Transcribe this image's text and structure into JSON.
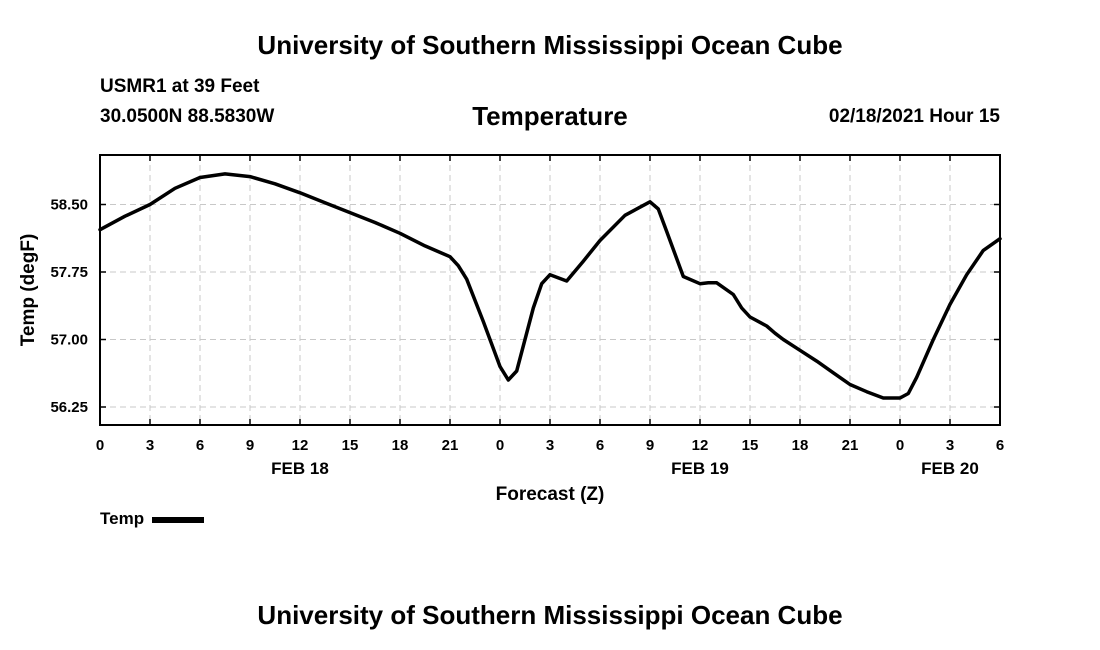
{
  "header": {
    "title": "University of Southern Mississippi Ocean Cube",
    "station": "USMR1 at 39 Feet",
    "coords": "30.0500N 88.5830W",
    "parameter": "Temperature",
    "datetime": "02/18/2021 Hour 15"
  },
  "footer": {
    "title": "University of Southern Mississippi Ocean Cube"
  },
  "legend": {
    "label": "Temp",
    "color": "#000000"
  },
  "chart_data": {
    "type": "line",
    "title": "Temperature",
    "xlabel": "Forecast (Z)",
    "ylabel": "Temp (degF)",
    "xlim": [
      0,
      54
    ],
    "ylim": [
      56.05,
      59.05
    ],
    "grid": true,
    "x_tick_values": [
      0,
      3,
      6,
      9,
      12,
      15,
      18,
      21,
      24,
      27,
      30,
      33,
      36,
      39,
      42,
      45,
      48,
      51,
      54
    ],
    "x_tick_labels": [
      "0",
      "3",
      "6",
      "9",
      "12",
      "15",
      "18",
      "21",
      "0",
      "3",
      "6",
      "9",
      "12",
      "15",
      "18",
      "21",
      "0",
      "3",
      "6"
    ],
    "y_ticks": [
      56.25,
      57.0,
      57.75,
      58.5
    ],
    "y_tick_labels": [
      "56.25",
      "57.00",
      "57.75",
      "58.50"
    ],
    "date_labels": [
      {
        "x": 12,
        "label": "FEB 18"
      },
      {
        "x": 36,
        "label": "FEB 19"
      },
      {
        "x": 51,
        "label": "FEB 20"
      }
    ],
    "series": [
      {
        "name": "Temp",
        "color": "#000000",
        "x": [
          0,
          1.5,
          3,
          4.5,
          6,
          7.5,
          9,
          10.5,
          12,
          13.5,
          15,
          16.5,
          18,
          19.5,
          21,
          21.5,
          22,
          23,
          24,
          24.5,
          25,
          25.5,
          26,
          26.5,
          27,
          28,
          29,
          30,
          31.5,
          33,
          33.5,
          34,
          35,
          36,
          36.5,
          37,
          38,
          38.5,
          39,
          40,
          40.5,
          41,
          42,
          43,
          44,
          45,
          46,
          47,
          48,
          48.5,
          49,
          50,
          51,
          52,
          53,
          54
        ],
        "y": [
          58.22,
          58.37,
          58.5,
          58.68,
          58.8,
          58.84,
          58.81,
          58.73,
          58.63,
          58.52,
          58.41,
          58.3,
          58.18,
          58.04,
          57.92,
          57.82,
          57.67,
          57.2,
          56.7,
          56.55,
          56.65,
          57.0,
          57.35,
          57.62,
          57.72,
          57.65,
          57.87,
          58.1,
          58.38,
          58.53,
          58.45,
          58.2,
          57.7,
          57.62,
          57.63,
          57.63,
          57.5,
          57.35,
          57.25,
          57.15,
          57.07,
          57.0,
          56.88,
          56.76,
          56.63,
          56.5,
          56.42,
          56.35,
          56.35,
          56.4,
          56.58,
          57.0,
          57.39,
          57.72,
          57.99,
          58.12
        ]
      }
    ]
  }
}
